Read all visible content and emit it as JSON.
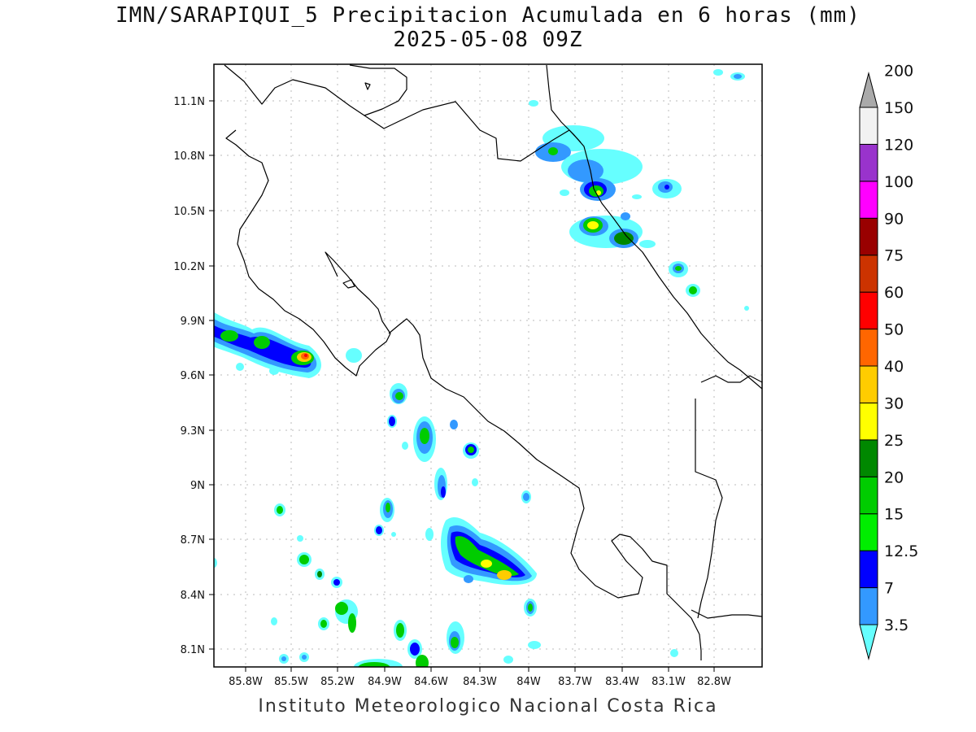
{
  "title_line1": "IMN/SARAPIQUI_5 Precipitacion Acumulada en 6 horas (mm)",
  "title_line2": "2025-05-08 09Z",
  "footer": "Instituto Meteorologico Nacional Costa Rica",
  "map": {
    "lon_range": [
      -86.0,
      -82.6
    ],
    "lat_range": [
      8.0,
      11.3
    ],
    "lat_ticks": [
      "11.1N",
      "10.8N",
      "10.5N",
      "10.2N",
      "9.9N",
      "9.6N",
      "9.3N",
      "9N",
      "8.7N",
      "8.4N",
      "8.1N"
    ],
    "lon_ticks": [
      "85.8W",
      "85.5W",
      "85.2W",
      "84.9W",
      "84.6W",
      "84.3W",
      "84W",
      "83.7W",
      "83.4W",
      "83.1W",
      "82.8W"
    ],
    "grid": "dotted"
  },
  "colorbar": {
    "levels": [
      "3.5",
      "7",
      "12.5",
      "15",
      "20",
      "25",
      "30",
      "40",
      "50",
      "60",
      "75",
      "90",
      "100",
      "120",
      "150",
      "200"
    ],
    "colors": [
      "#66ffff",
      "#3399ff",
      "#0000ff",
      "#00ee00",
      "#00cc00",
      "#008800",
      "#ffff00",
      "#ffcc00",
      "#ff6600",
      "#ff0000",
      "#cc3300",
      "#990000",
      "#ff00ff",
      "#9933cc",
      "#f2f2f2",
      "#aaaaaa"
    ]
  }
}
